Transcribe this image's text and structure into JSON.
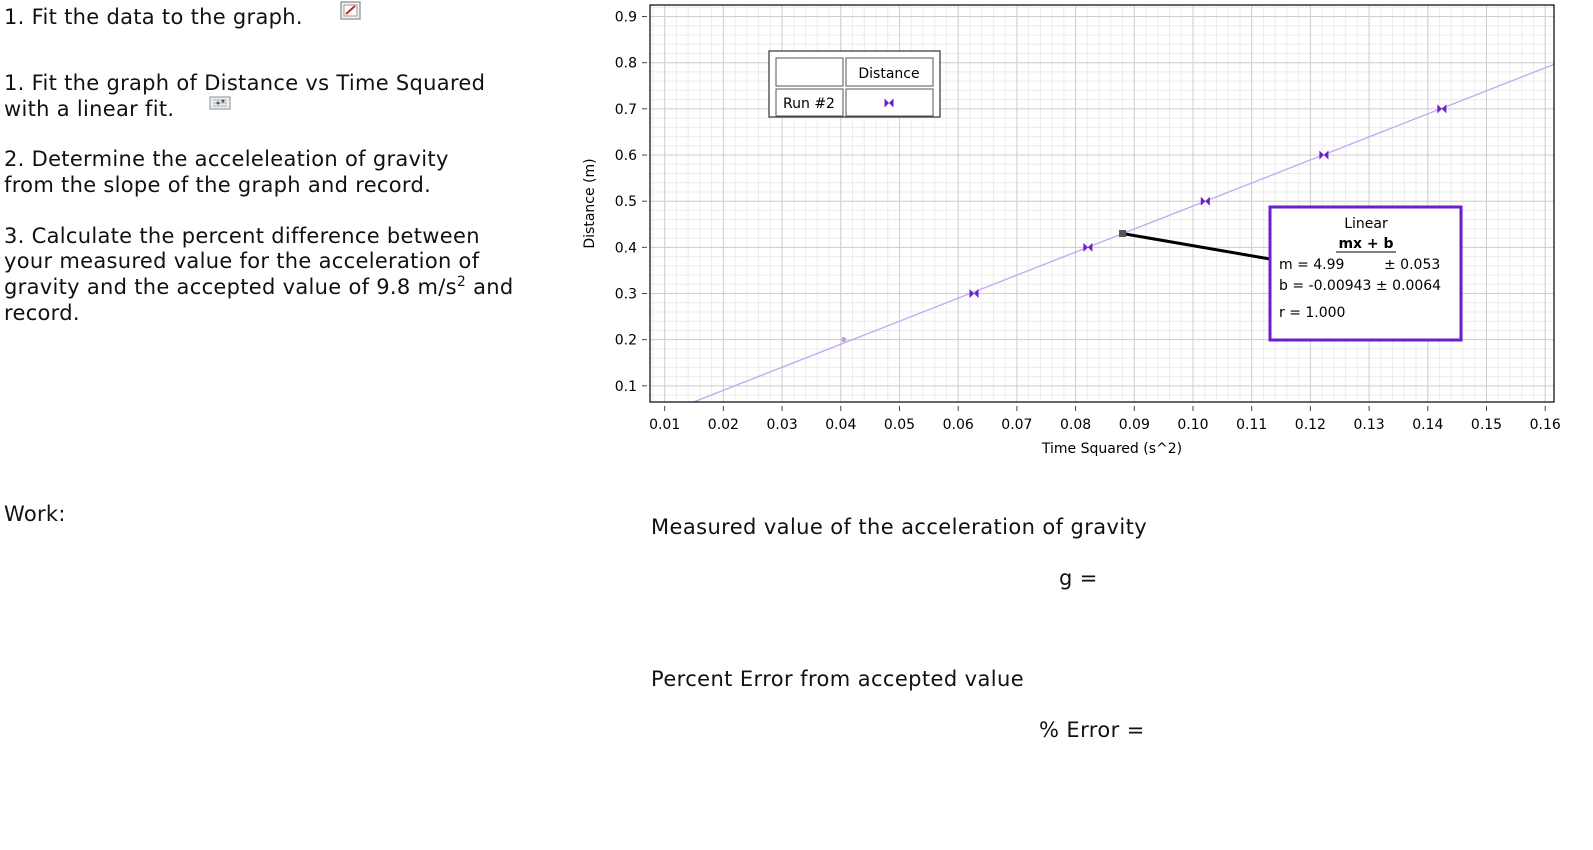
{
  "instructions": {
    "heading": "1.  Fit the data to the graph.",
    "step1_line1": "1. Fit the graph of Distance vs Time Squared",
    "step1_line2": "with a linear fit.",
    "step2_line1": "2.  Determine the acceleleation of gravity",
    "step2_line2": "from the slope of the graph and record.",
    "step3_line1": "3.  Calculate the percent difference between",
    "step3_line2": "your measured value for the acceleration of",
    "step3_line3_pre": "gravity and the accepted value of 9.8 m/s",
    "step3_line3_sup": "2",
    "step3_line3_post": " and",
    "step3_line4": "record.",
    "icons": [
      "edit-graph-icon",
      "graph-options-icon"
    ]
  },
  "work_label": "Work:",
  "answers": {
    "measured_label": "Measured value of the acceleration of gravity",
    "g_label": "g =",
    "percent_label": "Percent Error from accepted value",
    "error_label": "% Error ="
  },
  "chart_data": {
    "type": "scatter",
    "xlabel": "Time Squared (s^2)",
    "ylabel": "Distance (m)",
    "xlim": [
      0.0075,
      0.1615
    ],
    "ylim": [
      0.065,
      0.925
    ],
    "xticks": [
      "0.01",
      "0.02",
      "0.03",
      "0.04",
      "0.05",
      "0.06",
      "0.07",
      "0.08",
      "0.09",
      "0.10",
      "0.11",
      "0.12",
      "0.13",
      "0.14",
      "0.15",
      "0.16"
    ],
    "yticks": [
      "0.1",
      "0.2",
      "0.3",
      "0.4",
      "0.5",
      "0.6",
      "0.7",
      "0.8",
      "0.9"
    ],
    "grid": true,
    "series": [
      {
        "name": "Distance",
        "color": "#6a1fc8",
        "x": [
          0.0627,
          0.0821,
          0.1021,
          0.1223,
          0.1424
        ],
        "y": [
          0.3,
          0.4,
          0.5,
          0.6,
          0.7
        ]
      }
    ],
    "excluded_point": {
      "x": 0.0405,
      "y": 0.2,
      "color": "#c49be8"
    },
    "fit": {
      "slope": 4.99,
      "intercept": -0.00943,
      "color": "#c3a6f2"
    },
    "legend": {
      "header": "Distance",
      "run_label": "Run #2",
      "placement": "top-left"
    },
    "fit_box": {
      "title": "Linear",
      "formula": "mx + b",
      "m_label": "m = 4.99",
      "m_unc": "± 0.053",
      "b_label": "b  = -0.00943 ± 0.0064",
      "r_label": "r = 1.000",
      "border_color": "#6a1fc8",
      "anchor": {
        "x": 0.088,
        "y": 0.43
      }
    }
  }
}
